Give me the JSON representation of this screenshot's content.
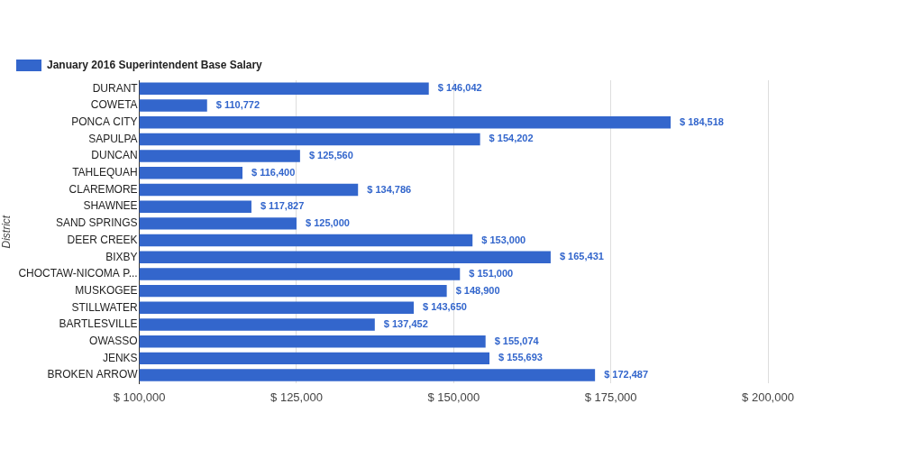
{
  "chart_data": {
    "type": "bar",
    "orientation": "horizontal",
    "y_label": "District",
    "categories": [
      "DURANT",
      "COWETA",
      "PONCA CITY",
      "SAPULPA",
      "DUNCAN",
      "TAHLEQUAH",
      "CLAREMORE",
      "SHAWNEE",
      "SAND SPRINGS",
      "DEER CREEK",
      "BIXBY",
      "CHOCTAW-NICOMA P...",
      "MUSKOGEE",
      "STILLWATER",
      "BARTLESVILLE",
      "OWASSO",
      "JENKS",
      "BROKEN ARROW"
    ],
    "series": [
      {
        "name": "January 2016 Superintendent Base Salary",
        "color": "#3366cc",
        "values": [
          146042,
          110772,
          184518,
          154202,
          125560,
          116400,
          134786,
          117827,
          125000,
          153000,
          165431,
          151000,
          148900,
          143650,
          137452,
          155074,
          155693,
          172487
        ],
        "value_labels": [
          "$ 146,042",
          "$ 110,772",
          "$ 184,518",
          "$ 154,202",
          "$ 125,560",
          "$ 116,400",
          "$ 134,786",
          "$ 117,827",
          "$ 125,000",
          "$ 153,000",
          "$ 165,431",
          "$ 151,000",
          "$ 148,900",
          "$ 143,650",
          "$ 137,452",
          "$ 155,074",
          "$ 155,693",
          "$ 172,487"
        ]
      }
    ],
    "xlim": [
      100000,
      200000
    ],
    "xticks": [
      {
        "value": 100000,
        "label": "$ 100,000"
      },
      {
        "value": 125000,
        "label": "$ 125,000"
      },
      {
        "value": 150000,
        "label": "$ 150,000"
      },
      {
        "value": 175000,
        "label": "$ 175,000"
      },
      {
        "value": 200000,
        "label": "$ 200,000"
      }
    ],
    "grid": true,
    "legend": "top-left",
    "data_labels": true
  }
}
